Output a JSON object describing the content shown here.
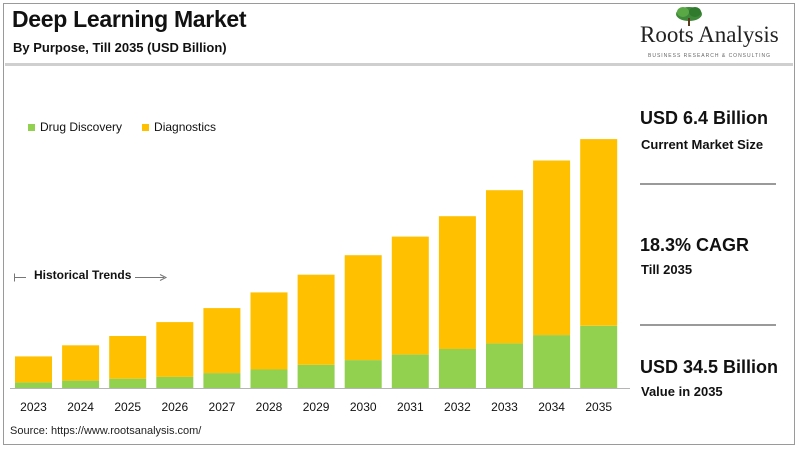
{
  "header": {
    "title": "Deep Learning Market",
    "subtitle": "By Purpose, Till 2035 (USD Billion)"
  },
  "logo": {
    "name": "Roots Analysis",
    "tagline": "BUSINESS RESEARCH & CONSULTING",
    "color": "#3f8a3a"
  },
  "annotation": {
    "historical_label": "Historical Trends"
  },
  "stats": [
    {
      "value": "USD 6.4 Billion",
      "label": "Current Market Size"
    },
    {
      "value": "18.3% CAGR",
      "label": "Till 2035"
    },
    {
      "value": "USD 34.5 Billion",
      "label": "Value in 2035"
    }
  ],
  "source": "Source: https://www.rootsanalysis.com/",
  "chart_data": {
    "type": "bar",
    "stacked": true,
    "categories": [
      "2023",
      "2024",
      "2025",
      "2026",
      "2027",
      "2028",
      "2029",
      "2030",
      "2031",
      "2032",
      "2033",
      "2034",
      "2035"
    ],
    "series": [
      {
        "name": "Drug Discovery",
        "color": "#92d050",
        "values": [
          0.6,
          0.8,
          1.0,
          1.2,
          1.6,
          2.0,
          2.5,
          3.0,
          3.6,
          4.2,
          4.8,
          5.7,
          6.7
        ]
      },
      {
        "name": "Diagnostics",
        "color": "#ffc000",
        "values": [
          2.8,
          3.8,
          4.6,
          5.9,
          7.0,
          8.3,
          9.7,
          11.3,
          12.7,
          14.3,
          16.5,
          18.8,
          20.1
        ]
      }
    ],
    "ylim": [
      0,
      35
    ],
    "legend_position": "top-left",
    "grid": false
  }
}
